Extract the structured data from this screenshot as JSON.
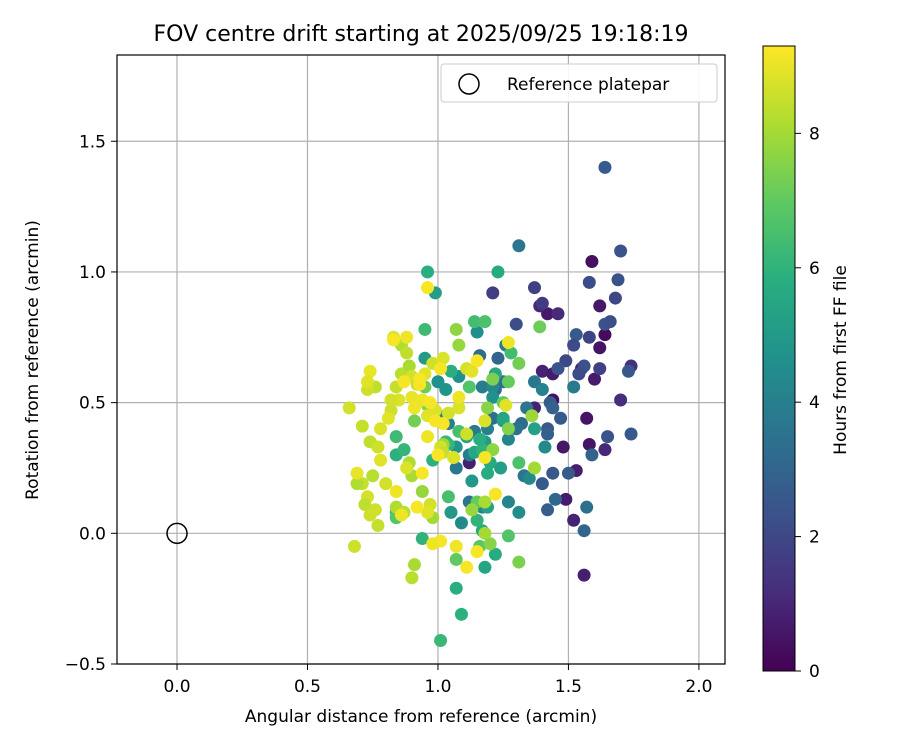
{
  "chart_data": {
    "type": "scatter",
    "title": "FOV centre drift starting at 2025/09/25 19:18:19",
    "xlabel": "Angular distance from reference (arcmin)",
    "ylabel": "Rotation from reference (arcmin)",
    "xlim": [
      -0.23,
      2.1
    ],
    "ylim": [
      -0.5,
      1.83
    ],
    "xticks": [
      0.0,
      0.5,
      1.0,
      1.5,
      2.0
    ],
    "xtick_labels": [
      "0.0",
      "0.5",
      "1.0",
      "1.5",
      "2.0"
    ],
    "yticks": [
      -0.5,
      0.0,
      0.5,
      1.0,
      1.5
    ],
    "ytick_labels": [
      "−0.5",
      "0.0",
      "0.5",
      "1.0",
      "1.5"
    ],
    "grid": true,
    "colormap": "viridis",
    "colorbar": {
      "label": "Hours from first FF file",
      "range": [
        0,
        9.3
      ],
      "ticks": [
        0,
        2,
        4,
        6,
        8
      ],
      "tick_labels": [
        "0",
        "2",
        "4",
        "6",
        "8"
      ]
    },
    "reference_point": {
      "name": "Reference platepar",
      "x": 0.0,
      "y": 0.0
    },
    "legend": {
      "placement": "top-right",
      "entries": [
        "Reference platepar"
      ]
    },
    "points": [
      {
        "x": 1.59,
        "y": 1.04,
        "t": 0.4
      },
      {
        "x": 1.62,
        "y": 0.87,
        "t": 0.6
      },
      {
        "x": 1.62,
        "y": 0.71,
        "t": 0.5
      },
      {
        "x": 1.55,
        "y": 0.63,
        "t": 0.8
      },
      {
        "x": 1.6,
        "y": 0.59,
        "t": 0.7
      },
      {
        "x": 1.64,
        "y": 0.76,
        "t": 0.3
      },
      {
        "x": 1.57,
        "y": 0.44,
        "t": 0.5
      },
      {
        "x": 1.48,
        "y": 0.33,
        "t": 0.6
      },
      {
        "x": 1.53,
        "y": 0.24,
        "t": 0.8
      },
      {
        "x": 1.44,
        "y": 0.51,
        "t": 0.4
      },
      {
        "x": 1.52,
        "y": 0.05,
        "t": 0.9
      },
      {
        "x": 1.49,
        "y": 0.13,
        "t": 0.7
      },
      {
        "x": 1.42,
        "y": 0.84,
        "t": 0.6
      },
      {
        "x": 1.39,
        "y": 0.87,
        "t": 1.0
      },
      {
        "x": 1.4,
        "y": 0.62,
        "t": 0.9
      },
      {
        "x": 1.56,
        "y": -0.16,
        "t": 0.8
      },
      {
        "x": 1.64,
        "y": 0.32,
        "t": 1.0
      },
      {
        "x": 1.46,
        "y": 0.84,
        "t": 1.1
      },
      {
        "x": 1.37,
        "y": 0.48,
        "t": 0.9
      },
      {
        "x": 1.12,
        "y": 0.27,
        "t": 0.8
      },
      {
        "x": 1.44,
        "y": 0.61,
        "t": 0.7
      },
      {
        "x": 1.58,
        "y": 0.34,
        "t": 0.5
      },
      {
        "x": 1.7,
        "y": 0.51,
        "t": 1.2
      },
      {
        "x": 1.74,
        "y": 0.64,
        "t": 1.3
      },
      {
        "x": 1.64,
        "y": 1.4,
        "t": 2.6
      },
      {
        "x": 1.7,
        "y": 1.08,
        "t": 2.4
      },
      {
        "x": 1.69,
        "y": 0.97,
        "t": 2.3
      },
      {
        "x": 1.58,
        "y": 0.96,
        "t": 2.2
      },
      {
        "x": 1.37,
        "y": 0.94,
        "t": 1.8
      },
      {
        "x": 1.4,
        "y": 0.88,
        "t": 1.6
      },
      {
        "x": 1.21,
        "y": 0.92,
        "t": 1.7
      },
      {
        "x": 1.68,
        "y": 0.9,
        "t": 2.0
      },
      {
        "x": 1.64,
        "y": 0.8,
        "t": 2.4
      },
      {
        "x": 1.66,
        "y": 0.81,
        "t": 2.2
      },
      {
        "x": 1.53,
        "y": 0.76,
        "t": 2.6
      },
      {
        "x": 1.58,
        "y": 0.75,
        "t": 1.9
      },
      {
        "x": 1.52,
        "y": 0.72,
        "t": 2.1
      },
      {
        "x": 1.3,
        "y": 0.8,
        "t": 2.2
      },
      {
        "x": 1.49,
        "y": 0.66,
        "t": 2.0
      },
      {
        "x": 1.46,
        "y": 0.63,
        "t": 2.4
      },
      {
        "x": 1.56,
        "y": 0.64,
        "t": 2.3
      },
      {
        "x": 1.54,
        "y": 0.61,
        "t": 2.1
      },
      {
        "x": 1.62,
        "y": 0.63,
        "t": 1.8
      },
      {
        "x": 1.73,
        "y": 0.62,
        "t": 2.5
      },
      {
        "x": 1.43,
        "y": 0.5,
        "t": 2.7
      },
      {
        "x": 1.44,
        "y": 0.48,
        "t": 2.9
      },
      {
        "x": 1.47,
        "y": 0.44,
        "t": 2.6
      },
      {
        "x": 1.42,
        "y": 0.4,
        "t": 2.5
      },
      {
        "x": 1.42,
        "y": 0.38,
        "t": 2.8
      },
      {
        "x": 1.65,
        "y": 0.37,
        "t": 2.4
      },
      {
        "x": 1.74,
        "y": 0.38,
        "t": 2.6
      },
      {
        "x": 1.59,
        "y": 0.3,
        "t": 2.9
      },
      {
        "x": 1.5,
        "y": 0.23,
        "t": 2.7
      },
      {
        "x": 1.44,
        "y": 0.23,
        "t": 2.5
      },
      {
        "x": 1.4,
        "y": 0.19,
        "t": 2.6
      },
      {
        "x": 1.42,
        "y": 0.09,
        "t": 2.8
      },
      {
        "x": 1.45,
        "y": 0.13,
        "t": 3.1
      },
      {
        "x": 1.56,
        "y": 0.01,
        "t": 3.0
      },
      {
        "x": 1.57,
        "y": 0.1,
        "t": 3.4
      },
      {
        "x": 1.31,
        "y": 1.1,
        "t": 3.6
      },
      {
        "x": 1.52,
        "y": 0.56,
        "t": 3.8
      },
      {
        "x": 1.26,
        "y": 0.72,
        "t": 3.8
      },
      {
        "x": 1.16,
        "y": 0.68,
        "t": 3.2
      },
      {
        "x": 1.23,
        "y": 0.67,
        "t": 3.0
      },
      {
        "x": 1.25,
        "y": 0.58,
        "t": 3.5
      },
      {
        "x": 1.17,
        "y": 0.56,
        "t": 3.9
      },
      {
        "x": 1.22,
        "y": 0.55,
        "t": 3.3
      },
      {
        "x": 1.37,
        "y": 0.58,
        "t": 3.7
      },
      {
        "x": 1.34,
        "y": 0.48,
        "t": 3.6
      },
      {
        "x": 1.32,
        "y": 0.42,
        "t": 3.2
      },
      {
        "x": 1.21,
        "y": 0.44,
        "t": 3.4
      },
      {
        "x": 1.3,
        "y": 0.4,
        "t": 3.5
      },
      {
        "x": 1.14,
        "y": 0.39,
        "t": 3.8
      },
      {
        "x": 1.04,
        "y": 0.42,
        "t": 4.0
      },
      {
        "x": 1.12,
        "y": 0.3,
        "t": 3.9
      },
      {
        "x": 1.07,
        "y": 0.25,
        "t": 3.7
      },
      {
        "x": 1.12,
        "y": 0.12,
        "t": 3.6
      },
      {
        "x": 1.17,
        "y": 0.1,
        "t": 4.1
      },
      {
        "x": 1.33,
        "y": 0.22,
        "t": 3.6
      },
      {
        "x": 1.27,
        "y": 0.12,
        "t": 4.2
      },
      {
        "x": 1.21,
        "y": 0.56,
        "t": 4.3
      },
      {
        "x": 1.27,
        "y": 0.36,
        "t": 4.2
      },
      {
        "x": 1.19,
        "y": 0.4,
        "t": 4.0
      },
      {
        "x": 1.41,
        "y": 0.33,
        "t": 4.4
      },
      {
        "x": 1.4,
        "y": 0.55,
        "t": 4.1
      },
      {
        "x": 1.35,
        "y": 0.21,
        "t": 4.3
      },
      {
        "x": 1.31,
        "y": 0.08,
        "t": 4.5
      },
      {
        "x": 1.03,
        "y": 0.45,
        "t": 4.2
      },
      {
        "x": 1.09,
        "y": 0.04,
        "t": 4.4
      },
      {
        "x": 1.15,
        "y": 0.77,
        "t": 4.6
      },
      {
        "x": 1.21,
        "y": 0.52,
        "t": 4.7
      },
      {
        "x": 1.07,
        "y": 0.33,
        "t": 4.8
      },
      {
        "x": 1.13,
        "y": 0.2,
        "t": 4.9
      },
      {
        "x": 1.18,
        "y": 0.35,
        "t": 5.0
      },
      {
        "x": 1.03,
        "y": 0.55,
        "t": 4.8
      },
      {
        "x": 1.08,
        "y": 0.6,
        "t": 4.6
      },
      {
        "x": 1.0,
        "y": 0.58,
        "t": 4.7
      },
      {
        "x": 1.25,
        "y": 0.43,
        "t": 5.1
      },
      {
        "x": 1.24,
        "y": 0.25,
        "t": 5.2
      },
      {
        "x": 1.05,
        "y": 0.08,
        "t": 4.9
      },
      {
        "x": 0.95,
        "y": 0.67,
        "t": 5.0
      },
      {
        "x": 0.99,
        "y": 0.92,
        "t": 5.1
      },
      {
        "x": 1.19,
        "y": 0.1,
        "t": 5.3
      },
      {
        "x": 1.18,
        "y": -0.13,
        "t": 5.4
      },
      {
        "x": 1.22,
        "y": 0.61,
        "t": 5.5
      },
      {
        "x": 1.37,
        "y": 0.4,
        "t": 5.3
      },
      {
        "x": 1.2,
        "y": 0.27,
        "t": 5.6
      },
      {
        "x": 1.25,
        "y": 0.44,
        "t": 5.4
      },
      {
        "x": 1.11,
        "y": 0.37,
        "t": 5.2
      },
      {
        "x": 1.14,
        "y": 0.31,
        "t": 5.5
      },
      {
        "x": 0.96,
        "y": 1.0,
        "t": 5.8
      },
      {
        "x": 1.23,
        "y": 1.0,
        "t": 5.6
      },
      {
        "x": 1.19,
        "y": 0.23,
        "t": 5.7
      },
      {
        "x": 0.98,
        "y": 0.28,
        "t": 5.9
      },
      {
        "x": 1.22,
        "y": -0.08,
        "t": 5.7
      },
      {
        "x": 1.17,
        "y": 0.01,
        "t": 5.6
      },
      {
        "x": 1.05,
        "y": 0.62,
        "t": 5.8
      },
      {
        "x": 1.17,
        "y": 0.32,
        "t": 6.0
      },
      {
        "x": 1.16,
        "y": 0.36,
        "t": 5.8
      },
      {
        "x": 0.84,
        "y": 0.3,
        "t": 5.9
      },
      {
        "x": 1.04,
        "y": 0.34,
        "t": 6.1
      },
      {
        "x": 1.15,
        "y": 0.05,
        "t": 6.0
      },
      {
        "x": 1.09,
        "y": -0.31,
        "t": 5.9
      },
      {
        "x": 1.07,
        "y": -0.21,
        "t": 5.8
      },
      {
        "x": 1.01,
        "y": -0.41,
        "t": 6.2
      },
      {
        "x": 0.94,
        "y": -0.02,
        "t": 6.0
      },
      {
        "x": 0.84,
        "y": 0.37,
        "t": 6.3
      },
      {
        "x": 0.87,
        "y": 0.32,
        "t": 6.1
      },
      {
        "x": 0.84,
        "y": 0.08,
        "t": 6.4
      },
      {
        "x": 1.03,
        "y": 0.35,
        "t": 6.2
      },
      {
        "x": 1.08,
        "y": 0.39,
        "t": 6.5
      },
      {
        "x": 0.95,
        "y": 0.78,
        "t": 6.3
      },
      {
        "x": 1.14,
        "y": 0.81,
        "t": 6.4
      },
      {
        "x": 1.18,
        "y": 0.81,
        "t": 6.6
      },
      {
        "x": 1.28,
        "y": 0.69,
        "t": 6.4
      },
      {
        "x": 1.12,
        "y": 0.56,
        "t": 6.7
      },
      {
        "x": 1.04,
        "y": 0.14,
        "t": 6.5
      },
      {
        "x": 0.84,
        "y": 0.06,
        "t": 6.8
      },
      {
        "x": 1.27,
        "y": -0.01,
        "t": 6.7
      },
      {
        "x": 1.31,
        "y": 0.27,
        "t": 6.6
      },
      {
        "x": 1.16,
        "y": -0.05,
        "t": 6.9
      },
      {
        "x": 1.07,
        "y": -0.1,
        "t": 7.0
      },
      {
        "x": 1.15,
        "y": 0.12,
        "t": 7.1
      },
      {
        "x": 1.25,
        "y": 0.5,
        "t": 7.0
      },
      {
        "x": 1.39,
        "y": 0.79,
        "t": 7.2
      },
      {
        "x": 1.31,
        "y": 0.65,
        "t": 7.3
      },
      {
        "x": 1.27,
        "y": 0.58,
        "t": 7.1
      },
      {
        "x": 1.21,
        "y": 0.59,
        "t": 7.4
      },
      {
        "x": 0.96,
        "y": 0.49,
        "t": 7.5
      },
      {
        "x": 0.95,
        "y": 0.56,
        "t": 7.2
      },
      {
        "x": 0.91,
        "y": 0.43,
        "t": 7.3
      },
      {
        "x": 1.31,
        "y": -0.11,
        "t": 7.4
      },
      {
        "x": 1.2,
        "y": -0.04,
        "t": 7.6
      },
      {
        "x": 1.07,
        "y": 0.78,
        "t": 7.7
      },
      {
        "x": 1.08,
        "y": 0.72,
        "t": 7.8
      },
      {
        "x": 1.27,
        "y": 0.4,
        "t": 7.5
      },
      {
        "x": 1.19,
        "y": 0.48,
        "t": 7.6
      },
      {
        "x": 1.36,
        "y": 0.45,
        "t": 7.9
      },
      {
        "x": 1.21,
        "y": 0.32,
        "t": 7.7
      },
      {
        "x": 1.13,
        "y": 0.09,
        "t": 7.8
      },
      {
        "x": 1.02,
        "y": 0.34,
        "t": 7.9
      },
      {
        "x": 1.18,
        "y": 0.0,
        "t": 8.0
      },
      {
        "x": 1.37,
        "y": 0.25,
        "t": 8.0
      },
      {
        "x": 1.18,
        "y": 0.12,
        "t": 8.1
      },
      {
        "x": 0.94,
        "y": 0.16,
        "t": 7.8
      },
      {
        "x": 0.9,
        "y": 0.22,
        "t": 8.1
      },
      {
        "x": 0.89,
        "y": 0.27,
        "t": 8.2
      },
      {
        "x": 0.98,
        "y": 0.06,
        "t": 8.0
      },
      {
        "x": 0.84,
        "y": 0.1,
        "t": 8.2
      },
      {
        "x": 0.87,
        "y": 0.08,
        "t": 8.3
      },
      {
        "x": 0.91,
        "y": -0.12,
        "t": 8.1
      },
      {
        "x": 0.9,
        "y": -0.17,
        "t": 8.3
      },
      {
        "x": 0.86,
        "y": 0.72,
        "t": 8.2
      },
      {
        "x": 0.88,
        "y": 0.69,
        "t": 8.4
      },
      {
        "x": 0.86,
        "y": 0.61,
        "t": 8.3
      },
      {
        "x": 0.89,
        "y": 0.64,
        "t": 8.1
      },
      {
        "x": 0.84,
        "y": 0.56,
        "t": 8.5
      },
      {
        "x": 0.76,
        "y": 0.56,
        "t": 8.4
      },
      {
        "x": 0.73,
        "y": 0.55,
        "t": 8.6
      },
      {
        "x": 0.71,
        "y": 0.41,
        "t": 8.5
      },
      {
        "x": 0.74,
        "y": 0.35,
        "t": 8.4
      },
      {
        "x": 0.77,
        "y": 0.33,
        "t": 8.6
      },
      {
        "x": 0.75,
        "y": 0.22,
        "t": 8.3
      },
      {
        "x": 0.71,
        "y": 0.19,
        "t": 8.5
      },
      {
        "x": 0.73,
        "y": 0.14,
        "t": 8.7
      },
      {
        "x": 0.76,
        "y": 0.09,
        "t": 8.6
      },
      {
        "x": 0.72,
        "y": 0.11,
        "t": 8.4
      },
      {
        "x": 0.74,
        "y": 0.07,
        "t": 8.6
      },
      {
        "x": 0.77,
        "y": 0.03,
        "t": 8.5
      },
      {
        "x": 0.69,
        "y": 0.19,
        "t": 8.2
      },
      {
        "x": 0.68,
        "y": -0.05,
        "t": 8.6
      },
      {
        "x": 0.66,
        "y": 0.48,
        "t": 8.7
      },
      {
        "x": 0.82,
        "y": 0.47,
        "t": 8.6
      },
      {
        "x": 0.85,
        "y": 0.51,
        "t": 8.8
      },
      {
        "x": 0.9,
        "y": 0.6,
        "t": 8.7
      },
      {
        "x": 0.92,
        "y": 0.57,
        "t": 8.5
      },
      {
        "x": 0.95,
        "y": 0.61,
        "t": 8.9
      },
      {
        "x": 0.98,
        "y": 0.65,
        "t": 8.6
      },
      {
        "x": 1.02,
        "y": 0.67,
        "t": 8.8
      },
      {
        "x": 0.99,
        "y": 0.47,
        "t": 8.8
      },
      {
        "x": 0.96,
        "y": 0.45,
        "t": 8.9
      },
      {
        "x": 1.04,
        "y": 0.46,
        "t": 8.7
      },
      {
        "x": 1.08,
        "y": 0.48,
        "t": 8.8
      },
      {
        "x": 1.11,
        "y": 0.63,
        "t": 8.7
      },
      {
        "x": 1.13,
        "y": 0.62,
        "t": 8.9
      },
      {
        "x": 1.01,
        "y": 0.33,
        "t": 8.7
      },
      {
        "x": 1.02,
        "y": 0.31,
        "t": 8.5
      },
      {
        "x": 1.06,
        "y": 0.29,
        "t": 8.8
      },
      {
        "x": 1.11,
        "y": 0.38,
        "t": 8.6
      },
      {
        "x": 1.18,
        "y": 0.43,
        "t": 8.8
      },
      {
        "x": 1.26,
        "y": 0.49,
        "t": 8.9
      },
      {
        "x": 0.97,
        "y": 0.11,
        "t": 8.7
      },
      {
        "x": 0.96,
        "y": 0.08,
        "t": 8.9
      },
      {
        "x": 0.88,
        "y": 0.25,
        "t": 8.8
      },
      {
        "x": 0.8,
        "y": 0.19,
        "t": 8.7
      },
      {
        "x": 0.78,
        "y": 0.28,
        "t": 8.9
      },
      {
        "x": 0.83,
        "y": 0.75,
        "t": 8.8
      },
      {
        "x": 0.82,
        "y": 0.51,
        "t": 8.7
      },
      {
        "x": 0.81,
        "y": 0.44,
        "t": 8.9
      },
      {
        "x": 0.78,
        "y": 0.4,
        "t": 8.8
      },
      {
        "x": 0.74,
        "y": 0.62,
        "t": 9.0
      },
      {
        "x": 0.73,
        "y": 0.58,
        "t": 8.9
      },
      {
        "x": 0.69,
        "y": 0.23,
        "t": 9.0
      },
      {
        "x": 0.84,
        "y": 0.16,
        "t": 9.1
      },
      {
        "x": 0.9,
        "y": 0.52,
        "t": 9.0
      },
      {
        "x": 0.94,
        "y": 0.51,
        "t": 9.1
      },
      {
        "x": 0.97,
        "y": 0.5,
        "t": 9.2
      },
      {
        "x": 0.96,
        "y": 0.94,
        "t": 9.2
      },
      {
        "x": 0.83,
        "y": 0.74,
        "t": 9.2
      },
      {
        "x": 0.88,
        "y": 0.75,
        "t": 9.1
      },
      {
        "x": 0.93,
        "y": 0.59,
        "t": 9.2
      },
      {
        "x": 1.01,
        "y": 0.63,
        "t": 9.2
      },
      {
        "x": 1.08,
        "y": 0.52,
        "t": 9.1
      },
      {
        "x": 1.15,
        "y": 0.66,
        "t": 9.2
      },
      {
        "x": 1.27,
        "y": 0.73,
        "t": 9.1
      },
      {
        "x": 0.99,
        "y": 0.43,
        "t": 9.2
      },
      {
        "x": 1.02,
        "y": 0.42,
        "t": 9.2
      },
      {
        "x": 0.96,
        "y": 0.37,
        "t": 9.1
      },
      {
        "x": 0.94,
        "y": 0.23,
        "t": 9.2
      },
      {
        "x": 0.92,
        "y": 0.1,
        "t": 9.2
      },
      {
        "x": 0.86,
        "y": 0.07,
        "t": 9.1
      },
      {
        "x": 1.0,
        "y": 0.3,
        "t": 9.2
      },
      {
        "x": 1.18,
        "y": 0.29,
        "t": 9.2
      },
      {
        "x": 1.22,
        "y": 0.15,
        "t": 9.2
      },
      {
        "x": 1.15,
        "y": -0.07,
        "t": 9.2
      },
      {
        "x": 1.07,
        "y": -0.05,
        "t": 9.1
      },
      {
        "x": 1.01,
        "y": -0.03,
        "t": 9.2
      },
      {
        "x": 0.98,
        "y": -0.04,
        "t": 9.1
      },
      {
        "x": 1.11,
        "y": -0.13,
        "t": 9.2
      },
      {
        "x": 0.93,
        "y": 0.57,
        "t": 9.2
      },
      {
        "x": 0.87,
        "y": 0.58,
        "t": 9.2
      },
      {
        "x": 0.91,
        "y": 0.48,
        "t": 9.1
      }
    ]
  }
}
